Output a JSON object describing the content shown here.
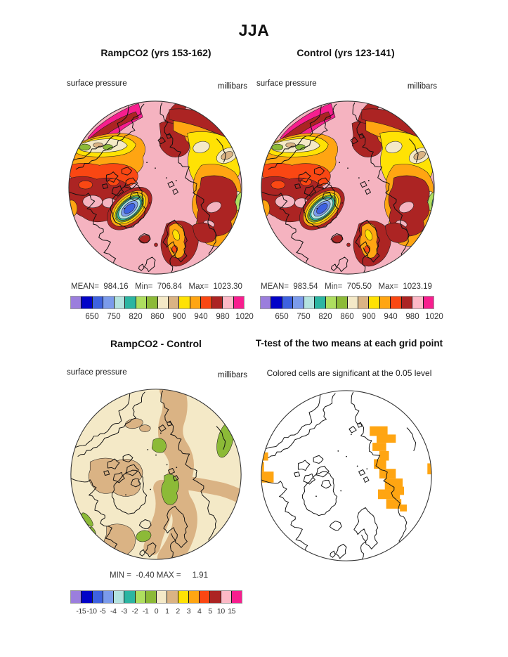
{
  "title": "JJA",
  "map_background": "#F5B3C0",
  "palette": [
    "#9B7EDD",
    "#0202C8",
    "#3E62E0",
    "#7B9BEB",
    "#B4E3DF",
    "#2CB5A2",
    "#AEDE5F",
    "#8CBA37",
    "#F4E9C7",
    "#DAB384",
    "#FFE204",
    "#FFA512",
    "#FA4713",
    "#AC2423",
    "#FCB9C6",
    "#F71E8E"
  ],
  "panels": {
    "ramp": {
      "title": "RampCO2 (yrs 153-162)",
      "field_label": "surface pressure",
      "units_label": "millibars",
      "stats_line": "MEAN=  984.16   Min=  706.84   Max=  1023.30"
    },
    "control": {
      "title": "Control (yrs 123-141)",
      "field_label": "surface pressure",
      "units_label": "millibars",
      "stats_line": "MEAN=  983.54   Min=  705.50   Max=  1023.19"
    },
    "diff": {
      "title": "RampCO2 - Control",
      "field_label": "surface pressure",
      "units_label": "millibars",
      "stats_line": "MIN =  -0.40 MAX =     1.91"
    },
    "ttest": {
      "title": "T-test of the two means at each grid point",
      "note": "Colored cells are significant at the 0.05 level",
      "significant_color": "#FFA512"
    }
  },
  "colorbars": {
    "pressure_ticks": [
      "650",
      "750",
      "820",
      "860",
      "900",
      "940",
      "980",
      "1020"
    ],
    "diff_ticks": [
      "-15",
      "-10",
      "-5",
      "-4",
      "-3",
      "-2",
      "-1",
      "0",
      "1",
      "2",
      "3",
      "4",
      "5",
      "10",
      "15"
    ]
  },
  "chart_data": [
    {
      "type": "heatmap",
      "panel": "RampCO2",
      "title": "RampCO2 (yrs 153-162)",
      "season_title": "JJA",
      "variable": "surface pressure",
      "units": "millibars",
      "projection": "north polar stereographic",
      "stats": {
        "mean": 984.16,
        "min": 706.84,
        "max": 1023.3
      },
      "colorbar_tick_labels": [
        650,
        750,
        820,
        860,
        900,
        940,
        980,
        1020
      ],
      "colorbar_colors": [
        "#9B7EDD",
        "#0202C8",
        "#3E62E0",
        "#7B9BEB",
        "#B4E3DF",
        "#2CB5A2",
        "#AEDE5F",
        "#8CBA37",
        "#F4E9C7",
        "#DAB384",
        "#FFE204",
        "#FFA512",
        "#FA4713",
        "#AC2423",
        "#FCB9C6",
        "#F71E8E"
      ],
      "legend_position": "below"
    },
    {
      "type": "heatmap",
      "panel": "Control",
      "title": "Control (yrs 123-141)",
      "season_title": "JJA",
      "variable": "surface pressure",
      "units": "millibars",
      "projection": "north polar stereographic",
      "stats": {
        "mean": 983.54,
        "min": 705.5,
        "max": 1023.19
      },
      "colorbar_tick_labels": [
        650,
        750,
        820,
        860,
        900,
        940,
        980,
        1020
      ],
      "colorbar_colors": [
        "#9B7EDD",
        "#0202C8",
        "#3E62E0",
        "#7B9BEB",
        "#B4E3DF",
        "#2CB5A2",
        "#AEDE5F",
        "#8CBA37",
        "#F4E9C7",
        "#DAB384",
        "#FFE204",
        "#FFA512",
        "#FA4713",
        "#AC2423",
        "#FCB9C6",
        "#F71E8E"
      ],
      "legend_position": "below"
    },
    {
      "type": "heatmap",
      "panel": "RampCO2 - Control",
      "title": "RampCO2 - Control",
      "variable": "surface pressure difference",
      "units": "millibars",
      "projection": "north polar stereographic",
      "stats": {
        "min": -0.4,
        "max": 1.91
      },
      "colorbar_tick_labels": [
        -15,
        -10,
        -5,
        -4,
        -3,
        -2,
        -1,
        0,
        1,
        2,
        3,
        4,
        5,
        10,
        15
      ],
      "colorbar_colors": [
        "#9B7EDD",
        "#0202C8",
        "#3E62E0",
        "#7B9BEB",
        "#B4E3DF",
        "#2CB5A2",
        "#AEDE5F",
        "#8CBA37",
        "#F4E9C7",
        "#DAB384",
        "#FFE204",
        "#FFA512",
        "#FA4713",
        "#AC2423",
        "#FCB9C6",
        "#F71E8E"
      ],
      "legend_position": "below"
    },
    {
      "type": "heatmap",
      "panel": "T-test",
      "title": "T-test of the two means at each grid point",
      "note": "Colored cells are significant at the 0.05 level",
      "significance_level": 0.05,
      "significant_color": "#FFA512",
      "projection": "north polar stereographic"
    }
  ]
}
